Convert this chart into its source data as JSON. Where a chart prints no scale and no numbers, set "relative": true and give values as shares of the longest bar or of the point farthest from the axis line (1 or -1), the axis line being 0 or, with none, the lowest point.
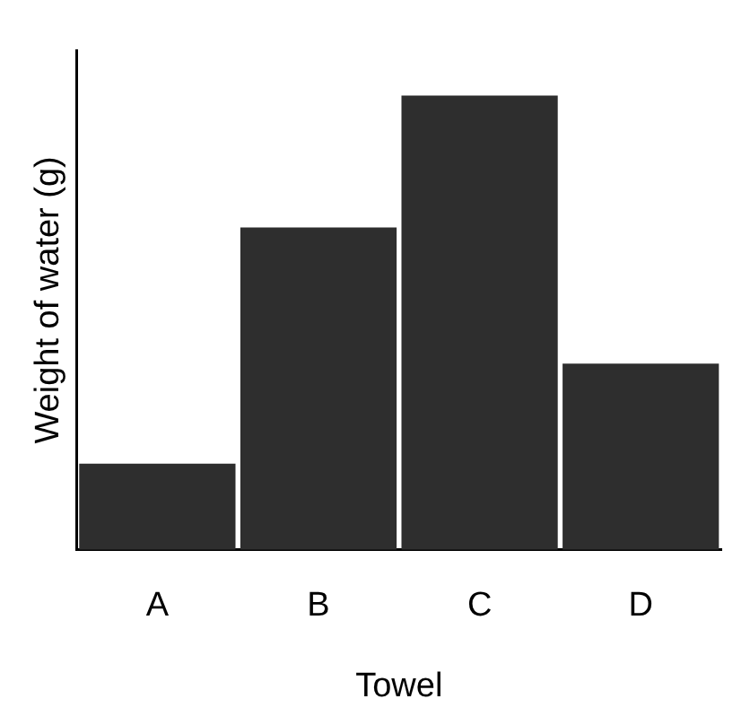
{
  "chart_data": {
    "type": "bar",
    "categories": [
      "A",
      "B",
      "C",
      "D"
    ],
    "values": [
      0.19,
      0.71,
      1,
      0.41
    ],
    "color": "#2e2e2e",
    "relative": true,
    "xlabel": "Towel",
    "ylabel": "Weight of water (g)",
    "grid": false
  }
}
